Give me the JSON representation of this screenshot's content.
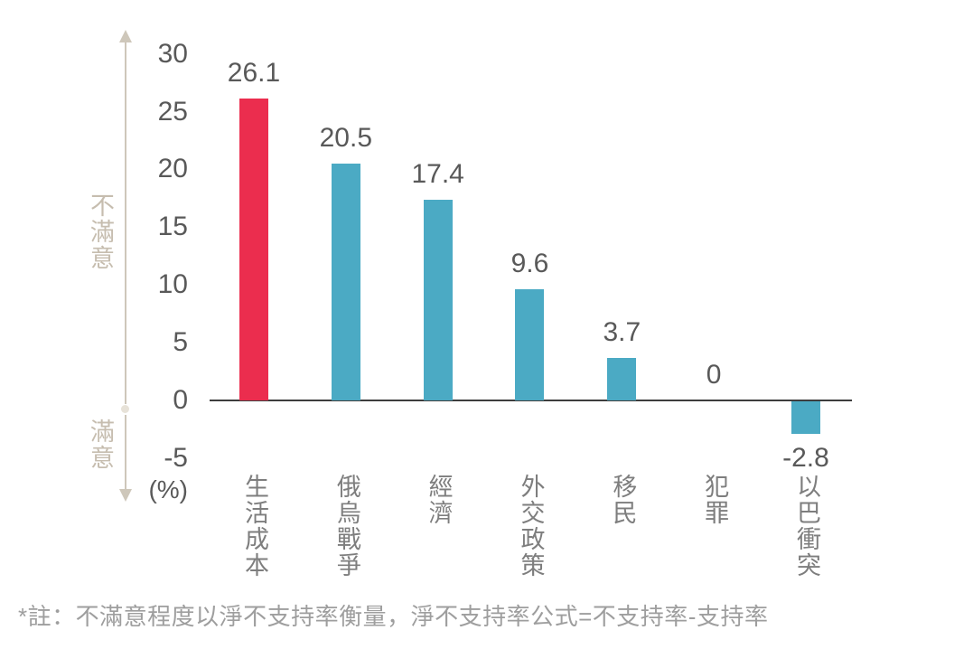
{
  "chart_data": {
    "type": "bar",
    "categories": [
      "生活成本",
      "俄烏戰爭",
      "經濟",
      "外交政策",
      "移民",
      "犯罪",
      "以巴衝突"
    ],
    "values": [
      26.1,
      20.5,
      17.4,
      9.6,
      3.7,
      0,
      -2.8
    ],
    "value_labels": [
      "26.1",
      "20.5",
      "17.4",
      "9.6",
      "3.7",
      "0",
      "-2.8"
    ],
    "bar_colors": [
      "#EB2D4E",
      "#4BAAC4",
      "#4BAAC4",
      "#4BAAC4",
      "#4BAAC4",
      "#4BAAC4",
      "#4BAAC4"
    ],
    "highlight_index": 0,
    "yticks": [
      30,
      25,
      20,
      15,
      10,
      5,
      0,
      -5
    ],
    "ylim": [
      -5,
      30
    ],
    "y_unit_label": "(%)",
    "xlabel": "",
    "ylabel": "",
    "title": "",
    "grid": false,
    "legend": false,
    "axis_annotations": {
      "positive_direction": "不滿意",
      "negative_direction": "滿意"
    }
  },
  "footnote": "*註：不滿意程度以淨不支持率衡量，淨不支持率公式=不支持率-支持率",
  "palette": {
    "background": "#FFFFFF",
    "highlight": "#EB2D4E",
    "default_bar": "#4BAAC4",
    "axis_line": "#3E3E3E",
    "tick_text": "#595959",
    "value_text": "#595959",
    "category_text": "#7E7E7E",
    "annotation_text": "#C6BDAF",
    "arrow": "#CEC7BA",
    "footnote_text": "#9E9E9E"
  }
}
